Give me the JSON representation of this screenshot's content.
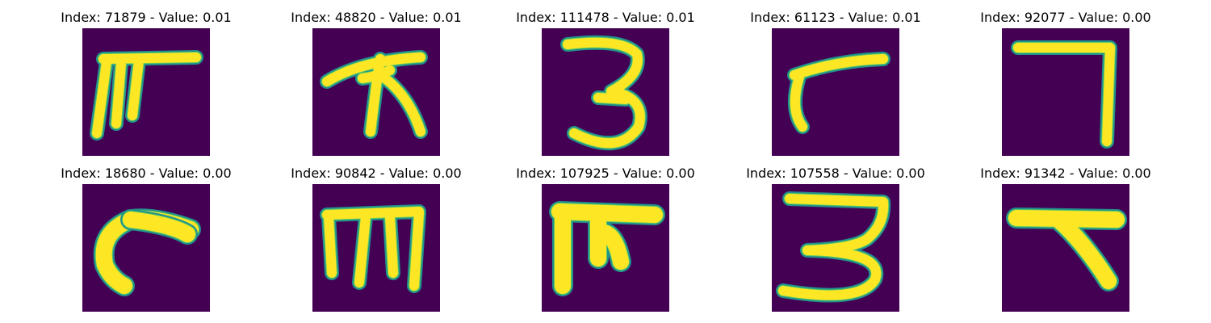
{
  "colors": {
    "background": "#440154",
    "foreground": "#fde725",
    "edge": "#21918c",
    "edge_light": "#5ec962"
  },
  "panels": [
    {
      "title": "Index: 71879 - Value: 0.01",
      "glyph": "glyph-1"
    },
    {
      "title": "Index: 48820 - Value: 0.01",
      "glyph": "glyph-2"
    },
    {
      "title": "Index: 111478 - Value: 0.01",
      "glyph": "glyph-3"
    },
    {
      "title": "Index: 61123 - Value: 0.01",
      "glyph": "glyph-4"
    },
    {
      "title": "Index: 92077 - Value: 0.00",
      "glyph": "glyph-5"
    },
    {
      "title": "Index: 18680 - Value: 0.00",
      "glyph": "glyph-6"
    },
    {
      "title": "Index: 90842 - Value: 0.00",
      "glyph": "glyph-7"
    },
    {
      "title": "Index: 107925 - Value: 0.00",
      "glyph": "glyph-8"
    },
    {
      "title": "Index: 107558 - Value: 0.00",
      "glyph": "glyph-9"
    },
    {
      "title": "Index: 91342 - Value: 0.00",
      "glyph": "glyph-10"
    }
  ]
}
